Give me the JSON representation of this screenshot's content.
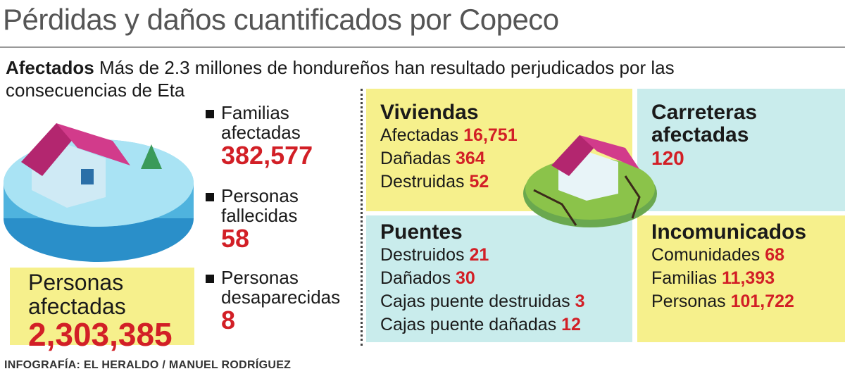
{
  "title": "Pérdidas y daños cuantificados por Copeco",
  "intro": {
    "label": "Afectados",
    "text": "Más de 2.3 millones de hondureños han resultado perjudicados por las consecuencias de Eta"
  },
  "highlight": {
    "label": "Personas afectadas",
    "value": "2,303,385"
  },
  "stats": [
    {
      "label": "Familias afectadas",
      "value": "382,577"
    },
    {
      "label": "Personas fallecidas",
      "value": "58"
    },
    {
      "label": "Personas desaparecidas",
      "value": "8"
    }
  ],
  "panels": [
    {
      "title": "Viviendas",
      "items": [
        {
          "label": "Afectadas",
          "value": "16,751"
        },
        {
          "label": "Dañadas",
          "value": "364"
        },
        {
          "label": "Destruidas",
          "value": "52"
        }
      ]
    },
    {
      "title": "Carreteras afectadas",
      "value": "120"
    },
    {
      "title": "Puentes",
      "items": [
        {
          "label": "Destruidos",
          "value": "21"
        },
        {
          "label": "Dañados",
          "value": "30"
        },
        {
          "label": "Cajas puente destruidas",
          "value": "3"
        },
        {
          "label": "Cajas puente dañadas",
          "value": "12"
        }
      ]
    },
    {
      "title": "Incomunicados",
      "items": [
        {
          "label": "Comunidades",
          "value": "68"
        },
        {
          "label": "Familias",
          "value": "11,393"
        },
        {
          "label": "Personas",
          "value": "101,722"
        }
      ]
    }
  ],
  "credit": "INFOGRAFÍA: EL HERALDO / MANUEL RODRÍGUEZ"
}
